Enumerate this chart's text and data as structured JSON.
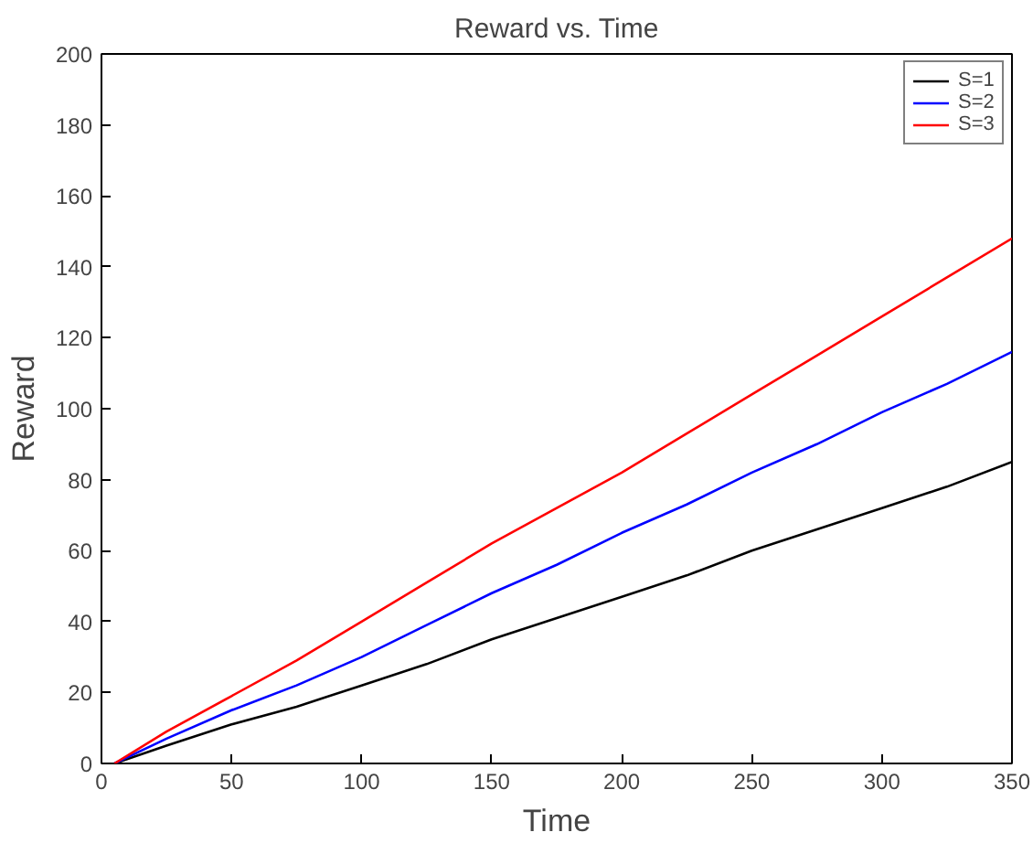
{
  "chart_data": {
    "type": "line",
    "title": "Reward vs. Time",
    "xlabel": "Time",
    "ylabel": "Reward",
    "xlim": [
      0,
      350
    ],
    "ylim": [
      0,
      200
    ],
    "xticks": [
      0,
      50,
      100,
      150,
      200,
      250,
      300,
      350
    ],
    "yticks": [
      0,
      20,
      40,
      60,
      80,
      100,
      120,
      140,
      160,
      180,
      200
    ],
    "grid": false,
    "legend": "top right",
    "line_style": "solid",
    "marker": "none",
    "series": [
      {
        "name": "S=1",
        "color": "#000000",
        "x": [
          5,
          25,
          50,
          75,
          100,
          125,
          150,
          175,
          200,
          225,
          250,
          275,
          300,
          325,
          350
        ],
        "values": [
          0,
          5,
          11,
          16,
          22,
          28,
          35,
          41,
          47,
          53,
          60,
          66,
          72,
          78,
          85
        ]
      },
      {
        "name": "S=2",
        "color": "#0000ff",
        "x": [
          5,
          25,
          50,
          75,
          100,
          125,
          150,
          175,
          200,
          225,
          250,
          275,
          300,
          325,
          350
        ],
        "values": [
          0,
          7,
          15,
          22,
          30,
          39,
          48,
          56,
          65,
          73,
          82,
          90,
          99,
          107,
          116
        ]
      },
      {
        "name": "S=3",
        "color": "#ff0000",
        "x": [
          5,
          25,
          50,
          75,
          100,
          125,
          150,
          175,
          200,
          225,
          250,
          275,
          300,
          325,
          350
        ],
        "values": [
          0,
          9,
          19,
          29,
          40,
          51,
          62,
          72,
          82,
          93,
          104,
          115,
          126,
          137,
          148
        ]
      }
    ]
  }
}
